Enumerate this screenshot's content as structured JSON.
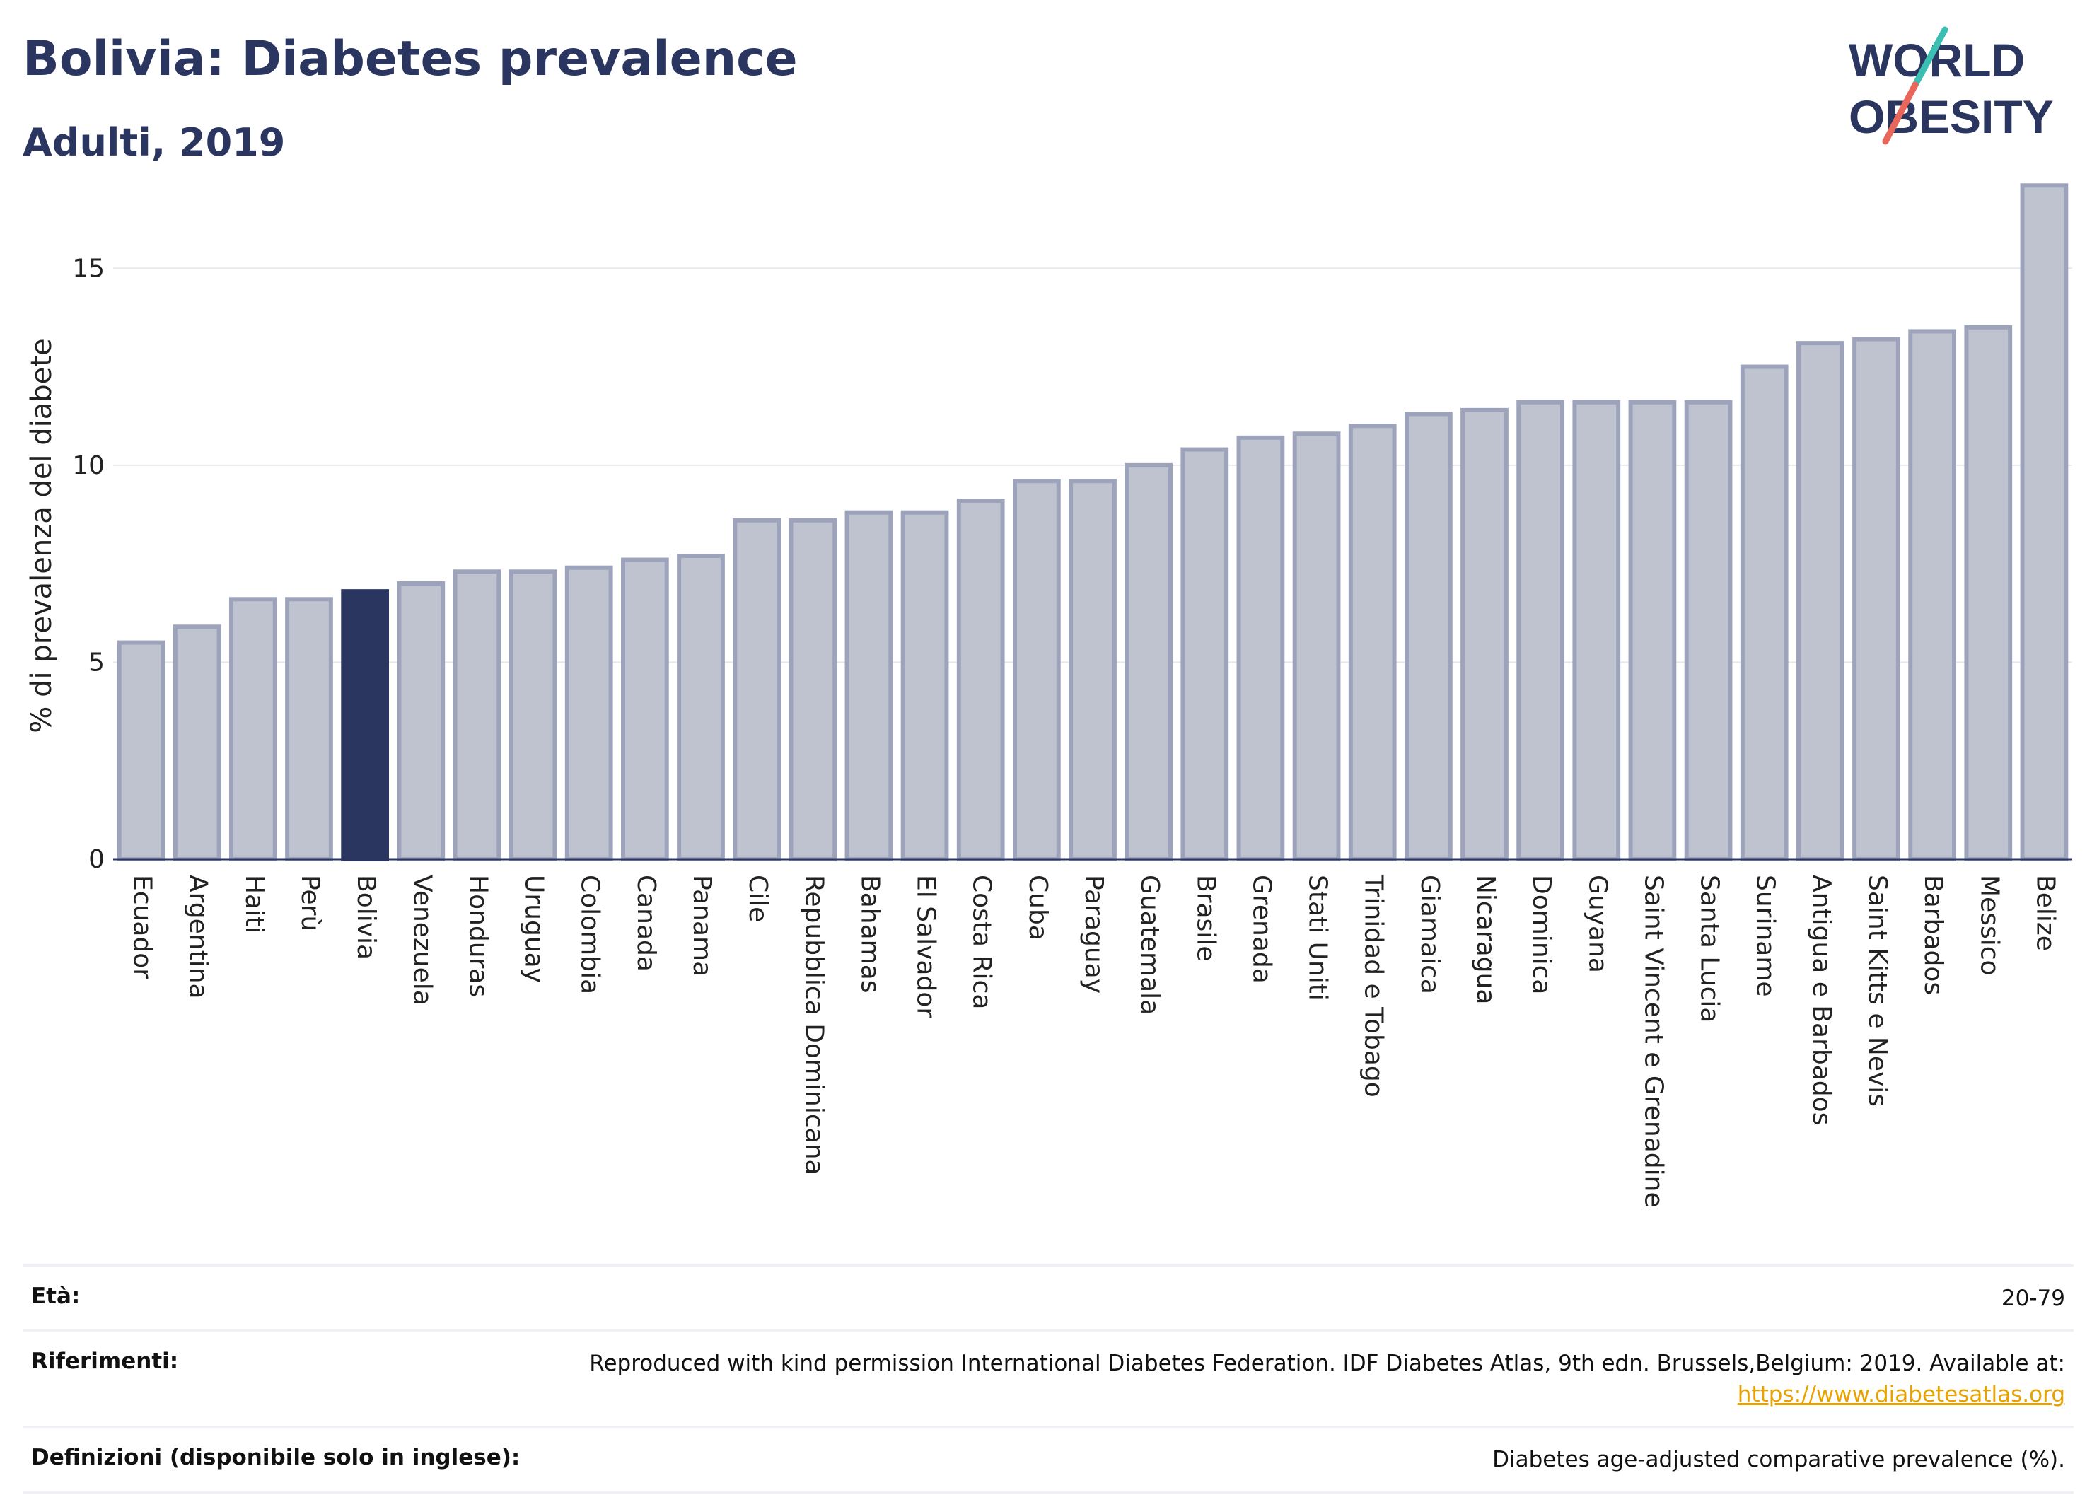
{
  "header": {
    "title": "Bolivia: Diabetes prevalence",
    "subtitle": "Adulti, 2019"
  },
  "logo": {
    "line1": "WORLD",
    "line2": "OBESITY",
    "accent_teal": "#3bbfb2",
    "accent_red": "#e8665a"
  },
  "chart_data": {
    "type": "bar",
    "ylabel": "% di prevalenza del diabete",
    "xlabel": "",
    "ylim": [
      0,
      17.5
    ],
    "yticks": [
      0,
      5,
      10,
      15
    ],
    "grid": true,
    "highlight": "Bolivia",
    "colors": {
      "bar": "#bfc3d0",
      "bar_edge": "#9da3ba",
      "highlight": "#2a3560"
    },
    "categories": [
      "Ecuador",
      "Argentina",
      "Haiti",
      "Perù",
      "Bolivia",
      "Venezuela",
      "Honduras",
      "Uruguay",
      "Colombia",
      "Canada",
      "Panama",
      "Cile",
      "Repubblica Dominicana",
      "Bahamas",
      "El Salvador",
      "Costa Rica",
      "Cuba",
      "Paraguay",
      "Guatemala",
      "Brasile",
      "Grenada",
      "Stati Uniti",
      "Trinidad e Tobago",
      "Giamaica",
      "Nicaragua",
      "Dominica",
      "Guyana",
      "Saint Vincent e Grenadine",
      "Santa Lucia",
      "Suriname",
      "Antigua e Barbados",
      "Saint Kitts e Nevis",
      "Barbados",
      "Messico",
      "Belize"
    ],
    "values": [
      5.5,
      5.9,
      6.6,
      6.6,
      6.8,
      7.0,
      7.3,
      7.3,
      7.4,
      7.6,
      7.7,
      8.6,
      8.6,
      8.8,
      8.8,
      9.1,
      9.6,
      9.6,
      10.0,
      10.4,
      10.7,
      10.8,
      11.0,
      11.3,
      11.4,
      11.6,
      11.6,
      11.6,
      11.6,
      12.5,
      13.1,
      13.2,
      13.4,
      13.5,
      17.1
    ]
  },
  "footer": {
    "age_label": "Età:",
    "age_value": "20-79",
    "refs_label": "Riferimenti:",
    "refs_text": "Reproduced with kind permission International Diabetes Federation. IDF Diabetes Atlas, 9th edn. Brussels,Belgium: 2019. Available at:",
    "refs_link": "https://www.diabetesatlas.org",
    "defs_label": "Definizioni (disponibile solo in inglese):",
    "defs_value": "Diabetes age-adjusted comparative prevalence (%)."
  }
}
